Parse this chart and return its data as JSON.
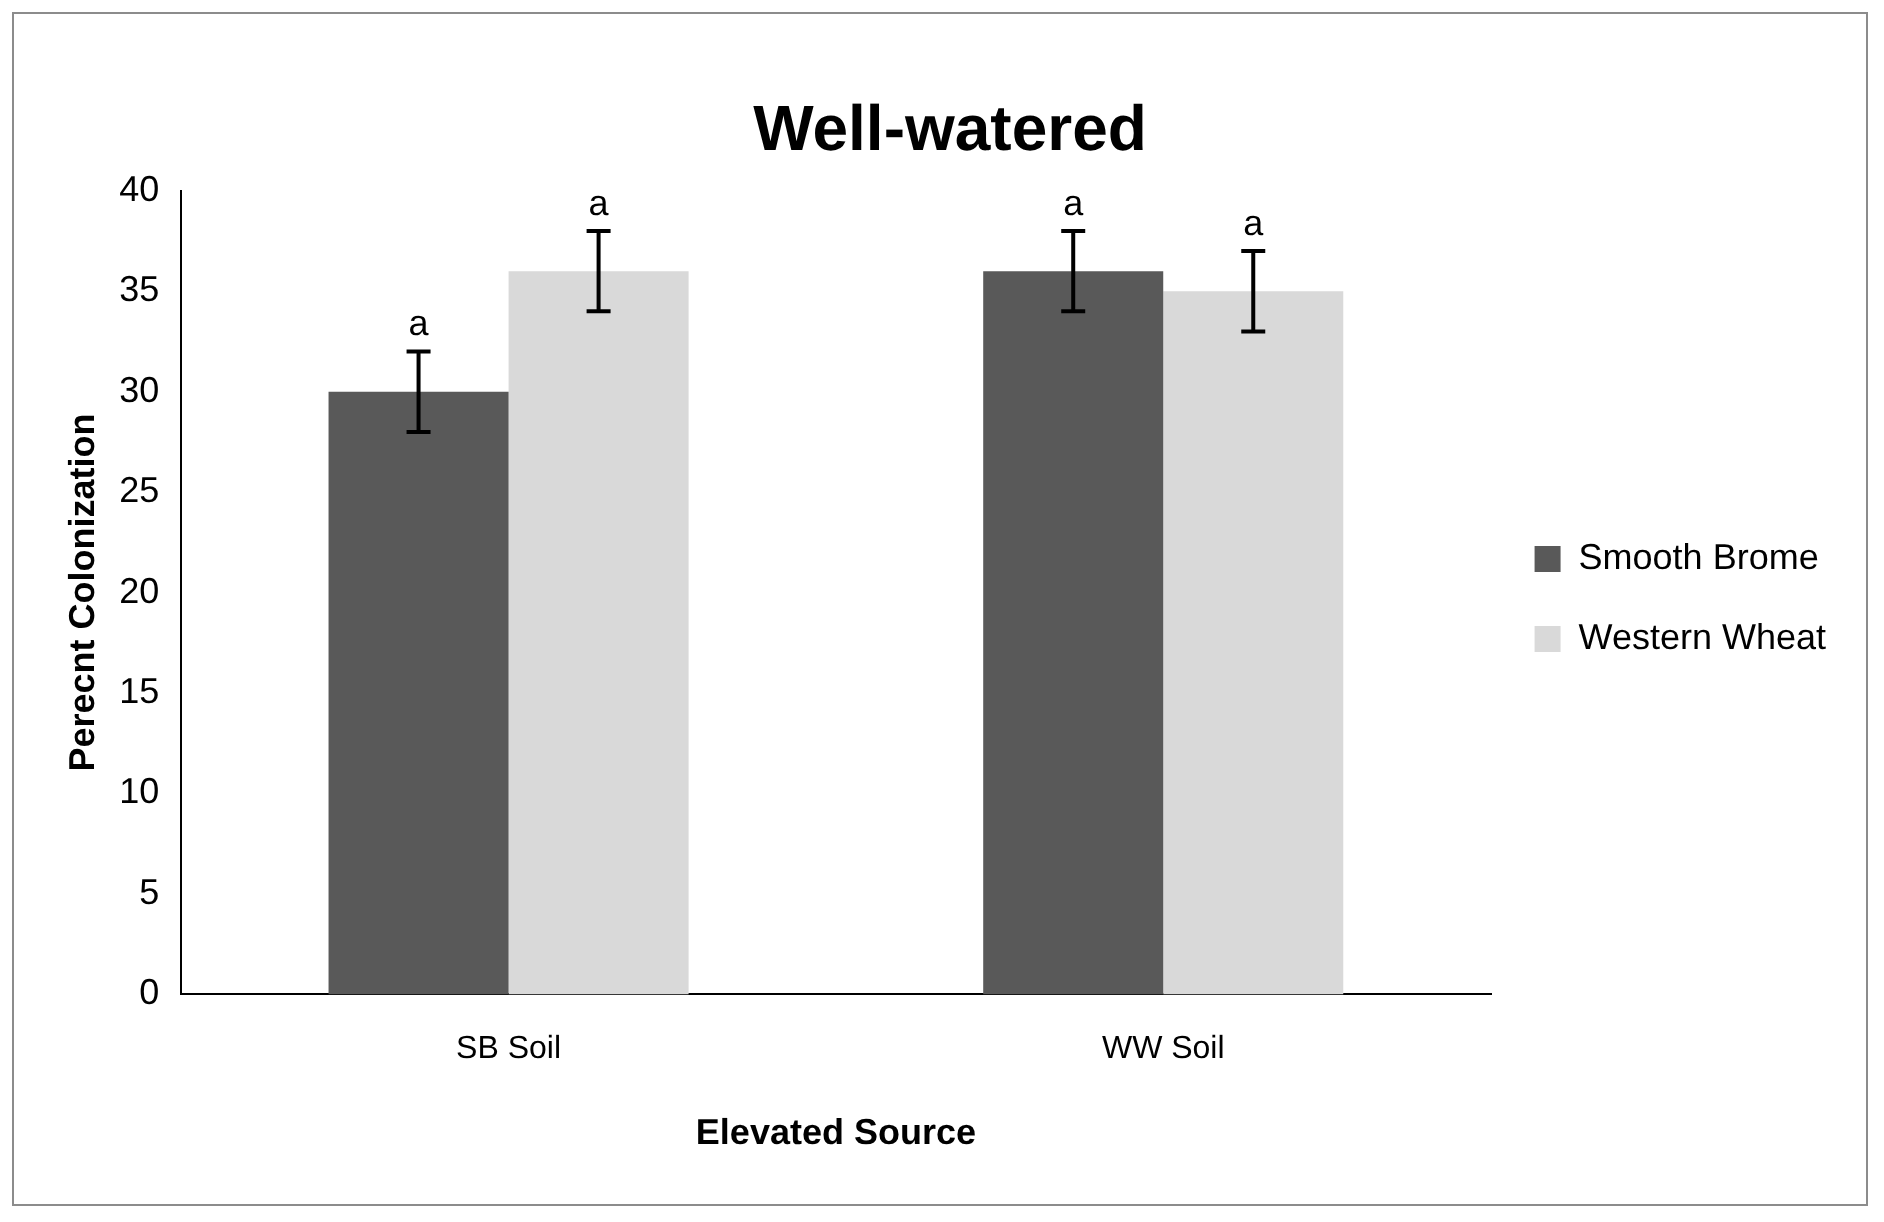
{
  "chart_data": {
    "type": "bar",
    "title": "Well-watered",
    "xlabel": "Elevated Source",
    "ylabel": "Perecnt Colonization",
    "categories": [
      "SB Soil",
      "WW Soil"
    ],
    "series": [
      {
        "name": "Smooth Brome",
        "color": "#595959",
        "values": [
          30,
          36
        ],
        "errors": [
          2,
          2
        ],
        "value_labels": [
          "a",
          "a"
        ]
      },
      {
        "name": "Western Wheat",
        "color": "#d9d9d9",
        "values": [
          36,
          35
        ],
        "errors": [
          2,
          2
        ],
        "value_labels": [
          "a",
          "a"
        ]
      }
    ],
    "ylim": [
      0,
      40
    ],
    "yticks": [
      0,
      5,
      10,
      15,
      20,
      25,
      30,
      35,
      40
    ],
    "grid": false,
    "legend": "right"
  }
}
